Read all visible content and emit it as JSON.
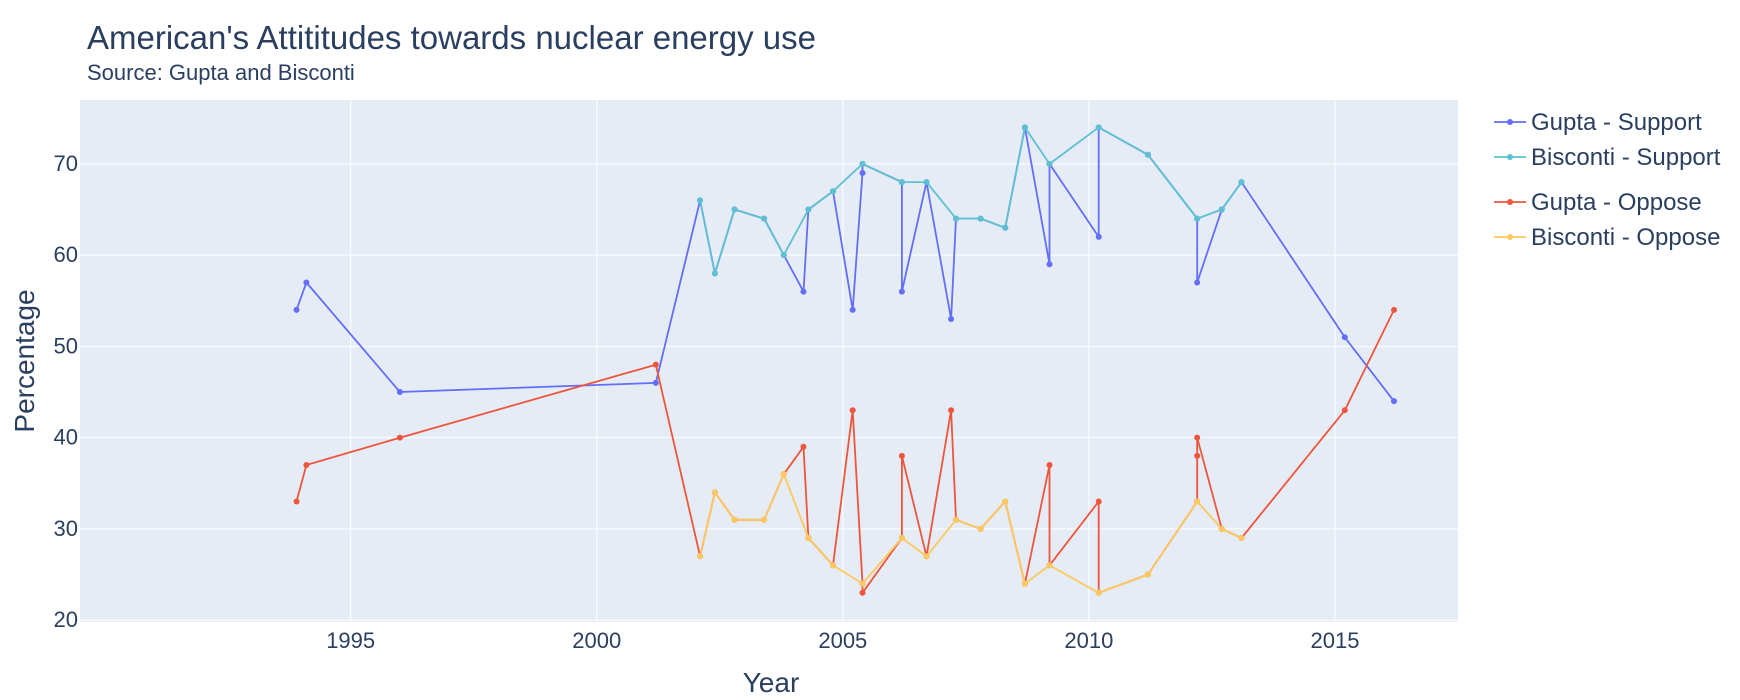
{
  "chart_data": {
    "type": "line",
    "title": "American's Attititudes towards nuclear energy use",
    "subtitle": "Source: Gupta and Bisconti",
    "xlabel": "Year",
    "ylabel": "Percentage",
    "xlim": [
      1989.5,
      2017.5
    ],
    "ylim": [
      19.8,
      77
    ],
    "xticks": [
      1995,
      2000,
      2005,
      2010,
      2015
    ],
    "yticks": [
      20,
      30,
      40,
      50,
      60,
      70
    ],
    "grid": true,
    "legend_position": "right",
    "background": "#e5ecf6",
    "series": [
      {
        "name": "Gupta - Support",
        "color": "#636efa",
        "x": [
          1993.9,
          1994.1,
          1996.0,
          2001.2,
          2002.1,
          2002.4,
          2002.8,
          2003.4,
          2003.8,
          2004.2,
          2004.3,
          2004.8,
          2005.2,
          2005.4,
          2005.4,
          2006.2,
          2006.2,
          2006.7,
          2007.2,
          2007.3,
          2007.8,
          2008.3,
          2008.7,
          2009.2,
          2009.2,
          2010.2,
          2010.2,
          2011.2,
          2012.2,
          2012.2,
          2012.7,
          2013.1,
          2015.2,
          2016.2
        ],
        "y": [
          54,
          57,
          45,
          46,
          66,
          58,
          65,
          64,
          60,
          56,
          65,
          67,
          54,
          69,
          70,
          68,
          56,
          68,
          53,
          64,
          64,
          63,
          74,
          59,
          70,
          62,
          74,
          71,
          64,
          57,
          65,
          68,
          51,
          44
        ]
      },
      {
        "name": "Bisconti - Support",
        "color": "#5dc1d2",
        "x": [
          2002.1,
          2002.4,
          2002.8,
          2003.4,
          2003.8,
          2004.3,
          2004.8,
          2005.4,
          2006.2,
          2006.7,
          2007.3,
          2007.8,
          2008.3,
          2008.7,
          2009.2,
          2010.2,
          2011.2,
          2012.2,
          2012.7,
          2013.1
        ],
        "y": [
          66,
          58,
          65,
          64,
          60,
          65,
          67,
          70,
          68,
          68,
          64,
          64,
          63,
          74,
          70,
          74,
          71,
          64,
          65,
          68
        ]
      },
      {
        "name": "Gupta - Oppose",
        "color": "#ef553b",
        "x": [
          1993.9,
          1994.1,
          1996.0,
          2001.2,
          2002.1,
          2002.4,
          2002.8,
          2003.4,
          2003.8,
          2004.2,
          2004.3,
          2004.8,
          2005.2,
          2005.4,
          2005.4,
          2006.2,
          2006.2,
          2006.7,
          2007.2,
          2007.3,
          2007.8,
          2008.3,
          2008.7,
          2009.2,
          2009.2,
          2010.2,
          2010.2,
          2011.2,
          2012.2,
          2012.2,
          2012.2,
          2012.7,
          2013.1,
          2015.2,
          2016.2
        ],
        "y": [
          33,
          37,
          40,
          48,
          27,
          34,
          31,
          31,
          36,
          39,
          29,
          26,
          43,
          24,
          23,
          29,
          38,
          27,
          43,
          31,
          30,
          33,
          24,
          37,
          26,
          33,
          23,
          25,
          33,
          38,
          40,
          30,
          29,
          43,
          54
        ]
      },
      {
        "name": "Bisconti - Oppose",
        "color": "#fdc85e",
        "x": [
          2002.1,
          2002.4,
          2002.8,
          2003.4,
          2003.8,
          2004.3,
          2004.8,
          2005.4,
          2006.2,
          2006.7,
          2007.3,
          2007.8,
          2008.3,
          2008.7,
          2009.2,
          2010.2,
          2011.2,
          2012.2,
          2012.7,
          2013.1
        ],
        "y": [
          27,
          34,
          31,
          31,
          36,
          29,
          26,
          24,
          29,
          27,
          31,
          30,
          33,
          24,
          26,
          23,
          25,
          33,
          30,
          29
        ]
      }
    ]
  }
}
